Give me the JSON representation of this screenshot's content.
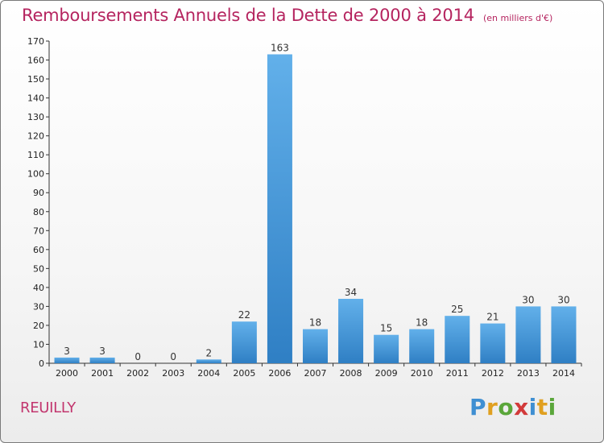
{
  "header": {
    "title": "Remboursements Annuels de la Dette de 2000 à 2014",
    "unit": "(en milliers d'€)"
  },
  "place": "REUILLY",
  "logo": {
    "letters": [
      "P",
      "r",
      "o",
      "x",
      "i",
      "t",
      "i"
    ],
    "colors": [
      "#3f8fd2",
      "#e0a020",
      "#5aa63a",
      "#d23a3a",
      "#3f8fd2",
      "#e0a020",
      "#5aa63a"
    ]
  },
  "colors": {
    "accent": "#b5245f",
    "bar_top": "#62b0ea",
    "bar_bottom": "#2f7fc4"
  },
  "chart_data": {
    "type": "bar",
    "title": "Remboursements Annuels de la Dette de 2000 à 2014",
    "subtitle": "(en milliers d'€)",
    "xlabel": "",
    "ylabel": "",
    "ylim": [
      0,
      170
    ],
    "yticks": [
      0,
      10,
      20,
      30,
      40,
      50,
      60,
      70,
      80,
      90,
      100,
      110,
      120,
      130,
      140,
      150,
      160,
      170
    ],
    "grid": false,
    "categories": [
      "2000",
      "2001",
      "2002",
      "2003",
      "2004",
      "2005",
      "2006",
      "2007",
      "2008",
      "2009",
      "2010",
      "2011",
      "2012",
      "2013",
      "2014"
    ],
    "values": [
      3,
      3,
      0,
      0,
      2,
      22,
      163,
      18,
      34,
      15,
      18,
      25,
      21,
      30,
      30
    ],
    "data_labels": [
      "3",
      "3",
      "0",
      "0",
      "2",
      "22",
      "163",
      "18",
      "34",
      "15",
      "18",
      "25",
      "21",
      "30",
      "30"
    ]
  }
}
